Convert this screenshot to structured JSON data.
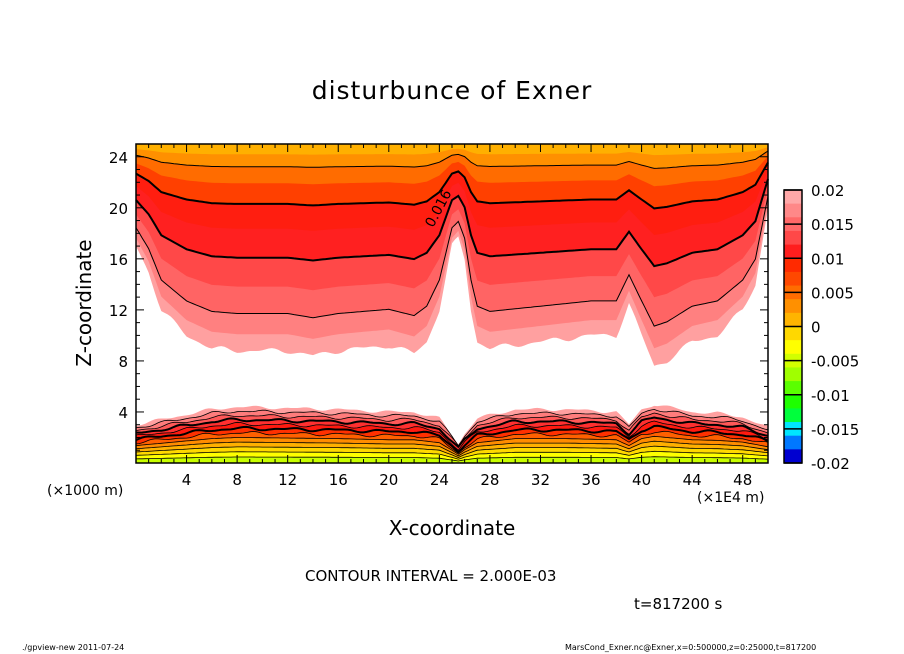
{
  "chart_data": {
    "type": "contour",
    "title": "disturbunce of Exner",
    "xlabel": "X-coordinate",
    "ylabel": "Z-coordinate",
    "x_unit": "(×1E4 m)",
    "y_unit": "(×1000 m)",
    "xlim": [
      0,
      50
    ],
    "ylim": [
      0,
      25
    ],
    "xticks": [
      4,
      8,
      12,
      16,
      20,
      24,
      28,
      32,
      36,
      40,
      44,
      48
    ],
    "yticks": [
      4,
      8,
      12,
      16,
      20,
      24
    ],
    "contour_interval_text": "CONTOUR INTERVAL = 2.000E-03",
    "contour_label": "0.016",
    "time_text": "t=817200 s",
    "colorbar": {
      "labels": [
        "0.02",
        "0.015",
        "0.01",
        "0.005",
        "0",
        "-0.005",
        "-0.01",
        "-0.015",
        "-0.02"
      ],
      "colors_top_to_bottom": [
        "#ffa8a8",
        "#ff8888",
        "#ff6868",
        "#ff4848",
        "#ff1e1e",
        "#ff2a00",
        "#ff4800",
        "#ff6c00",
        "#ff9000",
        "#ffb400",
        "#ffd800",
        "#ffff00",
        "#d2ff00",
        "#a0ff00",
        "#5aff00",
        "#1eff00",
        "#00ff3c",
        "#00ff78",
        "#00ffb4",
        "#00ffe6"
      ]
    },
    "colorbar_lower": [
      "#00e6ff",
      "#00b4ff",
      "#0096ff",
      "#0078ff",
      "#0050ff",
      "#0030ff",
      "#0000ff",
      "#0000d0",
      "#1e0096",
      "#5a0096",
      "#820096"
    ],
    "upper_field": {
      "white_boundary_z": [
        [
          0,
          17
        ],
        [
          1,
          15
        ],
        [
          2,
          12
        ],
        [
          4,
          10
        ],
        [
          6,
          9
        ],
        [
          8,
          8.8
        ],
        [
          12,
          8.8
        ],
        [
          14,
          8.4
        ],
        [
          16,
          8.8
        ],
        [
          18,
          9
        ],
        [
          20,
          9.2
        ],
        [
          22,
          8.6
        ],
        [
          23,
          9.5
        ],
        [
          24,
          12
        ],
        [
          25,
          17
        ],
        [
          25.5,
          17.6
        ],
        [
          26,
          16
        ],
        [
          26.5,
          12
        ],
        [
          27,
          9.5
        ],
        [
          28,
          9
        ],
        [
          32,
          9.5
        ],
        [
          36,
          10
        ],
        [
          38,
          10
        ],
        [
          39,
          12.5
        ],
        [
          40,
          10
        ],
        [
          41,
          7.6
        ],
        [
          42,
          8
        ],
        [
          44,
          9.5
        ],
        [
          46,
          10
        ],
        [
          48,
          12
        ],
        [
          49,
          14
        ],
        [
          50,
          20
        ]
      ],
      "band_colors_top_down": [
        "#ffb000",
        "#ff9000",
        "#ff6c00",
        "#ff4000",
        "#ff1e10",
        "#ff2020",
        "#ff4848",
        "#ff6464",
        "#ff8080",
        "#ffa0a0"
      ]
    },
    "lower_field": {
      "top_boundary_z": [
        [
          0,
          3
        ],
        [
          2,
          3.4
        ],
        [
          4,
          3.8
        ],
        [
          6,
          4.2
        ],
        [
          8,
          4.4
        ],
        [
          12,
          4.3
        ],
        [
          16,
          4.2
        ],
        [
          20,
          4
        ],
        [
          22,
          4
        ],
        [
          24,
          3.5
        ],
        [
          25,
          2.2
        ],
        [
          25.5,
          1.5
        ],
        [
          26,
          2.3
        ],
        [
          27,
          3.5
        ],
        [
          30,
          4.2
        ],
        [
          34,
          4.2
        ],
        [
          38,
          4
        ],
        [
          39,
          3
        ],
        [
          40,
          4.2
        ],
        [
          41,
          4.6
        ],
        [
          44,
          4
        ],
        [
          46,
          3.9
        ],
        [
          48,
          3.6
        ],
        [
          50,
          2.8
        ]
      ],
      "band_colors_bottom_up": [
        "#c8ff00",
        "#ffff00",
        "#ffd800",
        "#ffb000",
        "#ff8c00",
        "#ff6000",
        "#ff3000",
        "#ff1a10",
        "#ff3030",
        "#ff5858",
        "#ff7c7c",
        "#ffa0a0"
      ]
    }
  },
  "footer": {
    "left": "./gpview-new  2011-07-24",
    "right": "MarsCond_Exner.nc@Exner,x=0:500000,z=0:25000,t=817200"
  }
}
